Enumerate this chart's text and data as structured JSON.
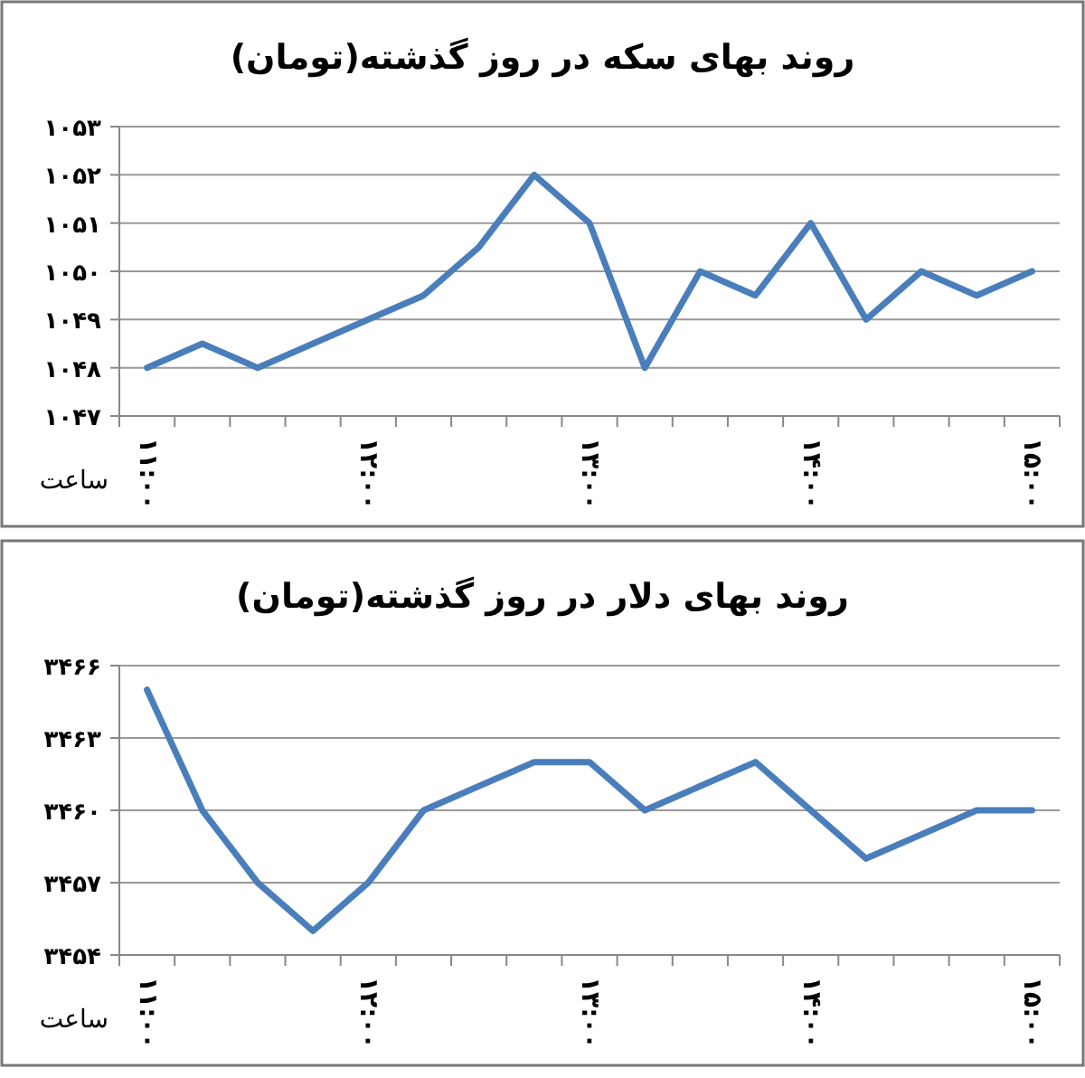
{
  "chart_data": [
    {
      "type": "line",
      "title": "روند بهای سکه در روز گذشته(تومان)",
      "xlabel": "ساعت",
      "categories": [
        "۱۱:۰۰",
        null,
        null,
        null,
        "۱۲:۰۰",
        null,
        null,
        null,
        "۱۳:۰۰",
        null,
        null,
        null,
        "۱۴:۰۰",
        null,
        null,
        null,
        "۱۵:۰۰"
      ],
      "series": [
        {
          "color": "#4a7ebb",
          "values": [
            1048,
            1048.5,
            1048,
            1048.5,
            1049,
            1049.5,
            1050.5,
            1052,
            1051,
            1048,
            1050,
            1049.5,
            1051,
            1049,
            1050,
            1049.5,
            1050
          ]
        }
      ],
      "ylim": [
        1047,
        1053
      ],
      "yticks": [
        {
          "value": 1047,
          "label": "۱۰۴۷"
        },
        {
          "value": 1048,
          "label": "۱۰۴۸"
        },
        {
          "value": 1049,
          "label": "۱۰۴۹"
        },
        {
          "value": 1050,
          "label": "۱۰۵۰"
        },
        {
          "value": 1051,
          "label": "۱۰۵۱"
        },
        {
          "value": 1052,
          "label": "۱۰۵۲"
        },
        {
          "value": 1053,
          "label": "۱۰۵۳"
        }
      ],
      "grid": "y",
      "marker": "none",
      "line_style": "solid"
    },
    {
      "type": "line",
      "title": "روند بهای دلار در روز گذشته(تومان)",
      "xlabel": "ساعت",
      "categories": [
        "۱۱:۰۰",
        null,
        null,
        null,
        "۱۲:۰۰",
        null,
        null,
        null,
        "۱۳:۰۰",
        null,
        null,
        null,
        "۱۴:۰۰",
        null,
        null,
        null,
        "۱۵:۰۰"
      ],
      "series": [
        {
          "color": "#4a7ebb",
          "values": [
            3465,
            3460,
            3457,
            3455,
            3457,
            3460,
            3461,
            3462,
            3462,
            3460,
            3461,
            3462,
            3460,
            3458,
            3459,
            3460,
            3460
          ]
        }
      ],
      "ylim": [
        3454,
        3466
      ],
      "yticks": [
        {
          "value": 3454,
          "label": "۳۴۵۴"
        },
        {
          "value": 3457,
          "label": "۳۴۵۷"
        },
        {
          "value": 3460,
          "label": "۳۴۶۰"
        },
        {
          "value": 3463,
          "label": "۳۴۶۳"
        },
        {
          "value": 3466,
          "label": "۳۴۶۶"
        }
      ],
      "grid": "y",
      "marker": "none",
      "line_style": "solid"
    }
  ]
}
